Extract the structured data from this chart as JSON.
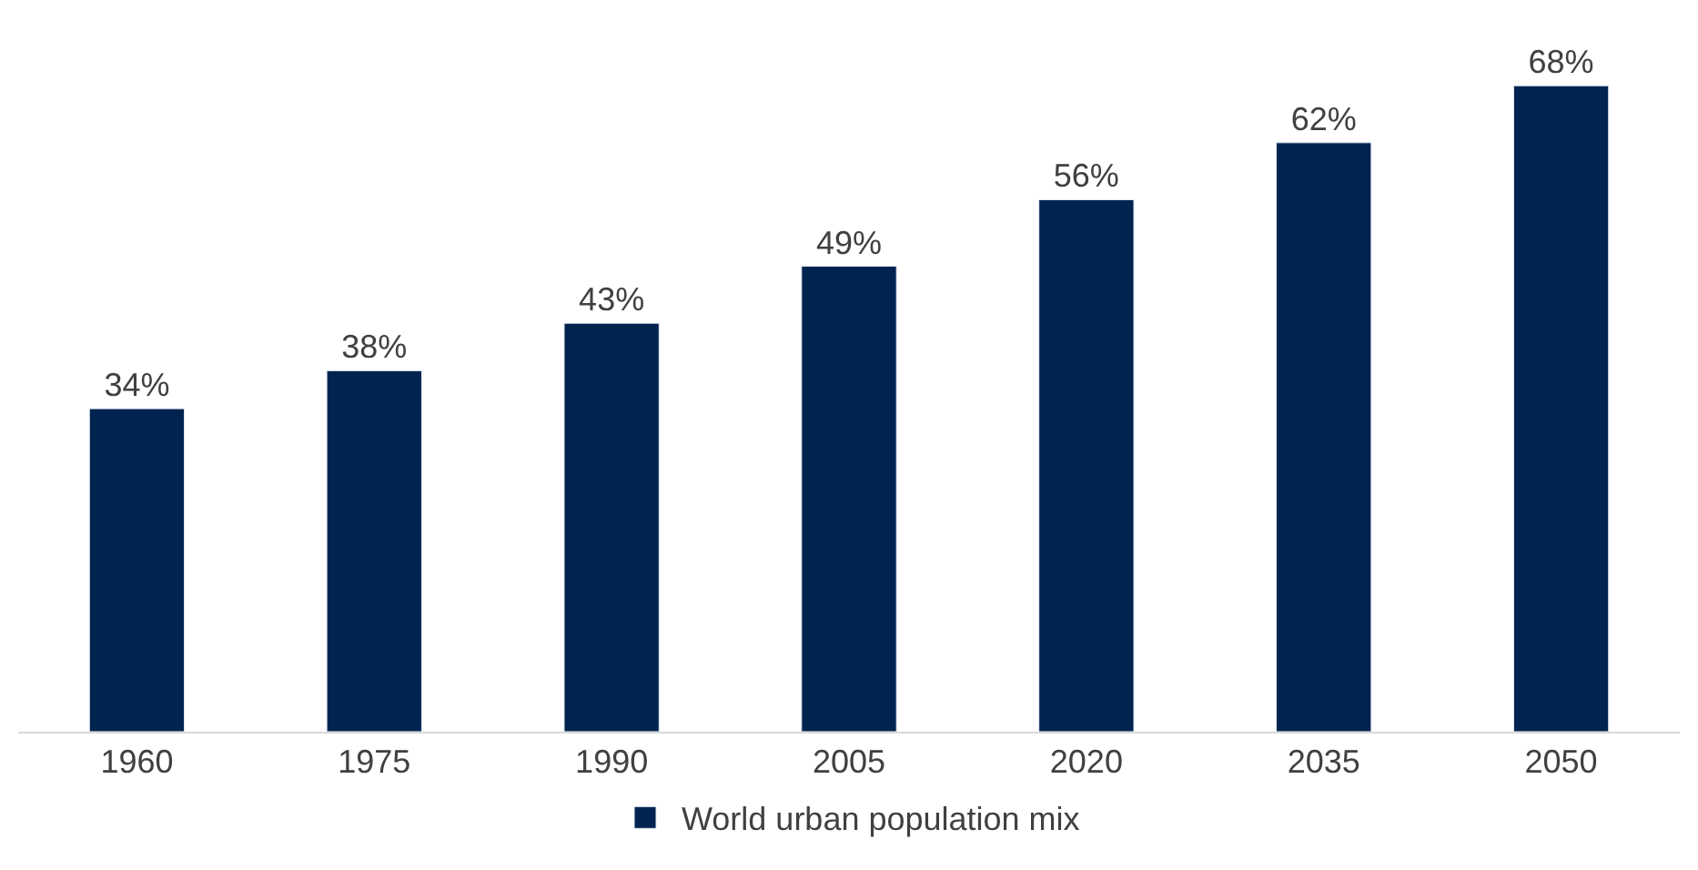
{
  "chart_data": {
    "type": "bar",
    "categories": [
      "1960",
      "1975",
      "1990",
      "2005",
      "2020",
      "2035",
      "2050"
    ],
    "series": [
      {
        "name": "World urban population mix",
        "color": "#00244f",
        "values": [
          34,
          38,
          43,
          49,
          56,
          62,
          68
        ],
        "value_labels": [
          "34%",
          "38%",
          "43%",
          "49%",
          "56%",
          "62%",
          "68%"
        ]
      }
    ],
    "legend": "bottom"
  }
}
